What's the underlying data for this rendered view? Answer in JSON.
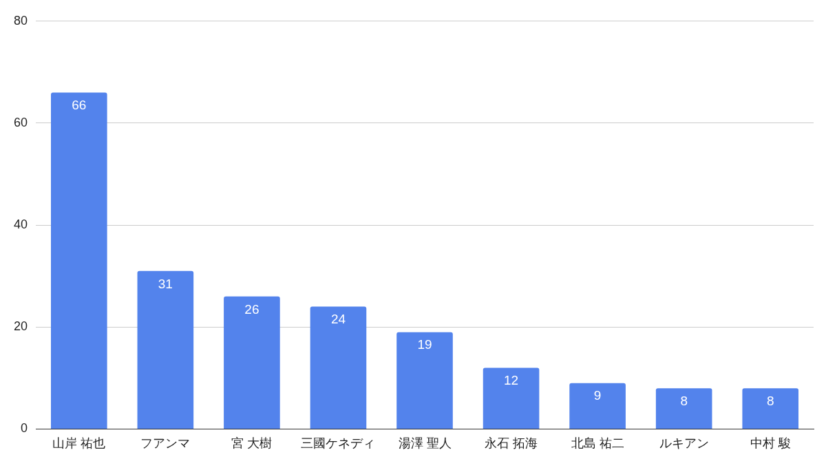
{
  "chart_data": {
    "type": "bar",
    "categories": [
      "山岸 祐也",
      "フアンマ",
      "宮 大樹",
      "三國ケネディ",
      "湯澤 聖人",
      "永石 拓海",
      "北島 祐二",
      "ルキアン",
      "中村 駿"
    ],
    "values": [
      66,
      31,
      26,
      24,
      19,
      12,
      9,
      8,
      8
    ],
    "color": "#5383ec",
    "ylim": [
      0,
      80
    ],
    "yticks": [
      0,
      20,
      40,
      60,
      80
    ],
    "grid": "y",
    "legend": false,
    "data_labels": true
  }
}
